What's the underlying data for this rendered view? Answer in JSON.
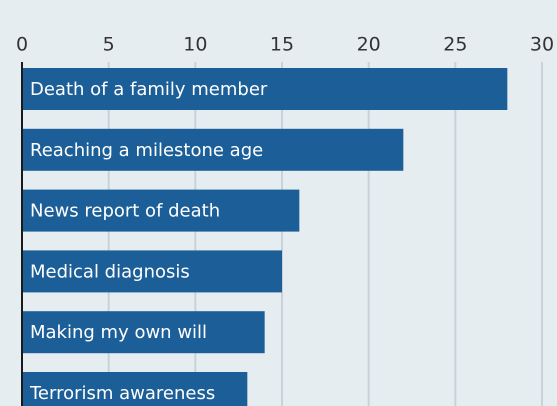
{
  "chart_data": {
    "type": "bar",
    "orientation": "horizontal",
    "categories": [
      "Death of a family member",
      "Reaching a milestone age",
      "News report of death",
      "Medical diagnosis",
      "Making my own will",
      "Terrorism awareness"
    ],
    "values": [
      28,
      22,
      16,
      15,
      14,
      13
    ],
    "color": "#1c5f98",
    "xlim": [
      0,
      30
    ],
    "xticks": [
      0,
      5,
      10,
      15,
      20,
      25,
      30
    ],
    "grid": true
  }
}
